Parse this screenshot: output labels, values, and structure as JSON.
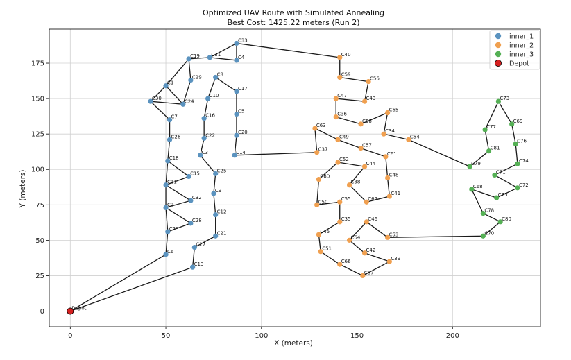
{
  "chart_data": {
    "type": "scatter",
    "title": "Optimized UAV Route with Simulated Annealing",
    "subtitle": "Best Cost: 1425.22 meters (Run 2)",
    "xlabel": "X (meters)",
    "ylabel": "Y (meters)",
    "xlim": [
      -11,
      246
    ],
    "ylim": [
      -11,
      199
    ],
    "xticks": [
      0,
      50,
      100,
      150,
      200
    ],
    "yticks": [
      0,
      25,
      50,
      75,
      100,
      125,
      150,
      175
    ],
    "grid": true,
    "legend_position": "top-right",
    "series": [
      {
        "name": "inner_1",
        "color": "#5b93bf"
      },
      {
        "name": "inner_2",
        "color": "#f0a050"
      },
      {
        "name": "inner_3",
        "color": "#55b055"
      },
      {
        "name": "Depot",
        "color": "#d62020"
      }
    ],
    "points": [
      {
        "label": "C1",
        "x": 50,
        "y": 159,
        "series": 0
      },
      {
        "label": "C2",
        "x": 50,
        "y": 73,
        "series": 0
      },
      {
        "label": "C3",
        "x": 68,
        "y": 110,
        "series": 0
      },
      {
        "label": "C4",
        "x": 87,
        "y": 177,
        "series": 0
      },
      {
        "label": "C5",
        "x": 87,
        "y": 139,
        "series": 0
      },
      {
        "label": "C6",
        "x": 50,
        "y": 40,
        "series": 0
      },
      {
        "label": "C7",
        "x": 52,
        "y": 135,
        "series": 0
      },
      {
        "label": "C8",
        "x": 76,
        "y": 165,
        "series": 0
      },
      {
        "label": "C9",
        "x": 75,
        "y": 83,
        "series": 0
      },
      {
        "label": "C10",
        "x": 72,
        "y": 150,
        "series": 0
      },
      {
        "label": "C11",
        "x": 50,
        "y": 89,
        "series": 0
      },
      {
        "label": "C12",
        "x": 76,
        "y": 68,
        "series": 0
      },
      {
        "label": "C13",
        "x": 64,
        "y": 31,
        "series": 0
      },
      {
        "label": "C14",
        "x": 86,
        "y": 110,
        "series": 0
      },
      {
        "label": "C15",
        "x": 62,
        "y": 95,
        "series": 0
      },
      {
        "label": "C16",
        "x": 70,
        "y": 136,
        "series": 0
      },
      {
        "label": "C17",
        "x": 87,
        "y": 155,
        "series": 0
      },
      {
        "label": "C18",
        "x": 51,
        "y": 106,
        "series": 0
      },
      {
        "label": "C19",
        "x": 62,
        "y": 178,
        "series": 0
      },
      {
        "label": "C20",
        "x": 87,
        "y": 124,
        "series": 0
      },
      {
        "label": "C21",
        "x": 76,
        "y": 53,
        "series": 0
      },
      {
        "label": "C22",
        "x": 70,
        "y": 122,
        "series": 0
      },
      {
        "label": "C23",
        "x": 51,
        "y": 56,
        "series": 0
      },
      {
        "label": "C24",
        "x": 59,
        "y": 146,
        "series": 0
      },
      {
        "label": "C25",
        "x": 76,
        "y": 97,
        "series": 0
      },
      {
        "label": "C26",
        "x": 52,
        "y": 121,
        "series": 0
      },
      {
        "label": "C27",
        "x": 65,
        "y": 45,
        "series": 0
      },
      {
        "label": "C28",
        "x": 63,
        "y": 62,
        "series": 0
      },
      {
        "label": "C29",
        "x": 63,
        "y": 163,
        "series": 0
      },
      {
        "label": "C30",
        "x": 42,
        "y": 148,
        "series": 0
      },
      {
        "label": "C31",
        "x": 73,
        "y": 179,
        "series": 0
      },
      {
        "label": "C32",
        "x": 63,
        "y": 78,
        "series": 0
      },
      {
        "label": "C33",
        "x": 87,
        "y": 189,
        "series": 0
      },
      {
        "label": "C34",
        "x": 164,
        "y": 125,
        "series": 1
      },
      {
        "label": "C35",
        "x": 141,
        "y": 63,
        "series": 1
      },
      {
        "label": "C36",
        "x": 139,
        "y": 137,
        "series": 1
      },
      {
        "label": "C37",
        "x": 129,
        "y": 112,
        "series": 1
      },
      {
        "label": "C38",
        "x": 146,
        "y": 89,
        "series": 1
      },
      {
        "label": "C39",
        "x": 167,
        "y": 35,
        "series": 1
      },
      {
        "label": "C40",
        "x": 141,
        "y": 179,
        "series": 1
      },
      {
        "label": "C41",
        "x": 167,
        "y": 81,
        "series": 1
      },
      {
        "label": "C42",
        "x": 154,
        "y": 41,
        "series": 1
      },
      {
        "label": "C43",
        "x": 154,
        "y": 148,
        "series": 1
      },
      {
        "label": "C44",
        "x": 154,
        "y": 102,
        "series": 1
      },
      {
        "label": "C45",
        "x": 130,
        "y": 54,
        "series": 1
      },
      {
        "label": "C46",
        "x": 155,
        "y": 63,
        "series": 1
      },
      {
        "label": "C47",
        "x": 139,
        "y": 150,
        "series": 1
      },
      {
        "label": "C48",
        "x": 166,
        "y": 94,
        "series": 1
      },
      {
        "label": "C49",
        "x": 140,
        "y": 121,
        "series": 1
      },
      {
        "label": "C50",
        "x": 129,
        "y": 75,
        "series": 1
      },
      {
        "label": "C51",
        "x": 131,
        "y": 42,
        "series": 1
      },
      {
        "label": "C52",
        "x": 140,
        "y": 105,
        "series": 1
      },
      {
        "label": "C53",
        "x": 166,
        "y": 52,
        "series": 1
      },
      {
        "label": "C54",
        "x": 177,
        "y": 121,
        "series": 1
      },
      {
        "label": "C55",
        "x": 141,
        "y": 77,
        "series": 1
      },
      {
        "label": "C56",
        "x": 156,
        "y": 162,
        "series": 1
      },
      {
        "label": "C57",
        "x": 152,
        "y": 115,
        "series": 1
      },
      {
        "label": "C58",
        "x": 152,
        "y": 132,
        "series": 1
      },
      {
        "label": "C59",
        "x": 141,
        "y": 165,
        "series": 1
      },
      {
        "label": "C60",
        "x": 130,
        "y": 93,
        "series": 1
      },
      {
        "label": "C61",
        "x": 165,
        "y": 109,
        "series": 1
      },
      {
        "label": "C62",
        "x": 155,
        "y": 77,
        "series": 1
      },
      {
        "label": "C63",
        "x": 128,
        "y": 129,
        "series": 1
      },
      {
        "label": "C64",
        "x": 146,
        "y": 50,
        "series": 1
      },
      {
        "label": "C65",
        "x": 166,
        "y": 140,
        "series": 1
      },
      {
        "label": "C66",
        "x": 141,
        "y": 33,
        "series": 1
      },
      {
        "label": "C67",
        "x": 153,
        "y": 25,
        "series": 1
      },
      {
        "label": "C68",
        "x": 210,
        "y": 86,
        "series": 2
      },
      {
        "label": "C69",
        "x": 231,
        "y": 132,
        "series": 2
      },
      {
        "label": "C70",
        "x": 216,
        "y": 53,
        "series": 2
      },
      {
        "label": "C71",
        "x": 222,
        "y": 96,
        "series": 2
      },
      {
        "label": "C72",
        "x": 234,
        "y": 87,
        "series": 2
      },
      {
        "label": "C73",
        "x": 224,
        "y": 148,
        "series": 2
      },
      {
        "label": "C74",
        "x": 234,
        "y": 104,
        "series": 2
      },
      {
        "label": "C75",
        "x": 223,
        "y": 80,
        "series": 2
      },
      {
        "label": "C76",
        "x": 233,
        "y": 118,
        "series": 2
      },
      {
        "label": "C77",
        "x": 217,
        "y": 128,
        "series": 2
      },
      {
        "label": "C78",
        "x": 216,
        "y": 69,
        "series": 2
      },
      {
        "label": "C79",
        "x": 209,
        "y": 102,
        "series": 2
      },
      {
        "label": "C80",
        "x": 225,
        "y": 63,
        "series": 2
      },
      {
        "label": "C81",
        "x": 219,
        "y": 113,
        "series": 2
      },
      {
        "label": "Depot",
        "x": 0,
        "y": 0,
        "series": 3
      }
    ],
    "route": [
      "Depot",
      "C6",
      "C23",
      "C2",
      "C11",
      "C18",
      "C26",
      "C7",
      "C30",
      "C1",
      "C19",
      "C31",
      "C33",
      "C40",
      "C59",
      "C56",
      "C43",
      "C47",
      "C36",
      "C58",
      "C65",
      "C34",
      "C54",
      "C79",
      "C81",
      "C77",
      "C73",
      "C69",
      "C76",
      "C74",
      "C71",
      "C72",
      "C75",
      "C68",
      "C78",
      "C80",
      "C70",
      "C53",
      "C46",
      "C64",
      "C42",
      "C39",
      "C67",
      "C66",
      "C51",
      "C45",
      "C35",
      "C55",
      "C50",
      "C60",
      "C52",
      "C44",
      "C38",
      "C62",
      "C41",
      "C48",
      "C61",
      "C57",
      "C49",
      "C63",
      "C37",
      "C14",
      "C20",
      "C5",
      "C17",
      "C8",
      "C10",
      "C16",
      "C22",
      "C3",
      "C25",
      "C9",
      "C12",
      "C21",
      "C27",
      "C13",
      "Depot"
    ],
    "route_extra_segments": [
      [
        "C1",
        "C24"
      ],
      [
        "C24",
        "C30"
      ],
      [
        "C29",
        "C19"
      ],
      [
        "C4",
        "C33"
      ],
      [
        "C31",
        "C4"
      ],
      [
        "C18",
        "C15"
      ],
      [
        "C15",
        "C11"
      ],
      [
        "C2",
        "C32"
      ],
      [
        "C32",
        "C11"
      ],
      [
        "C28",
        "C23"
      ],
      [
        "C28",
        "C2"
      ],
      [
        "C29",
        "C24"
      ]
    ]
  }
}
